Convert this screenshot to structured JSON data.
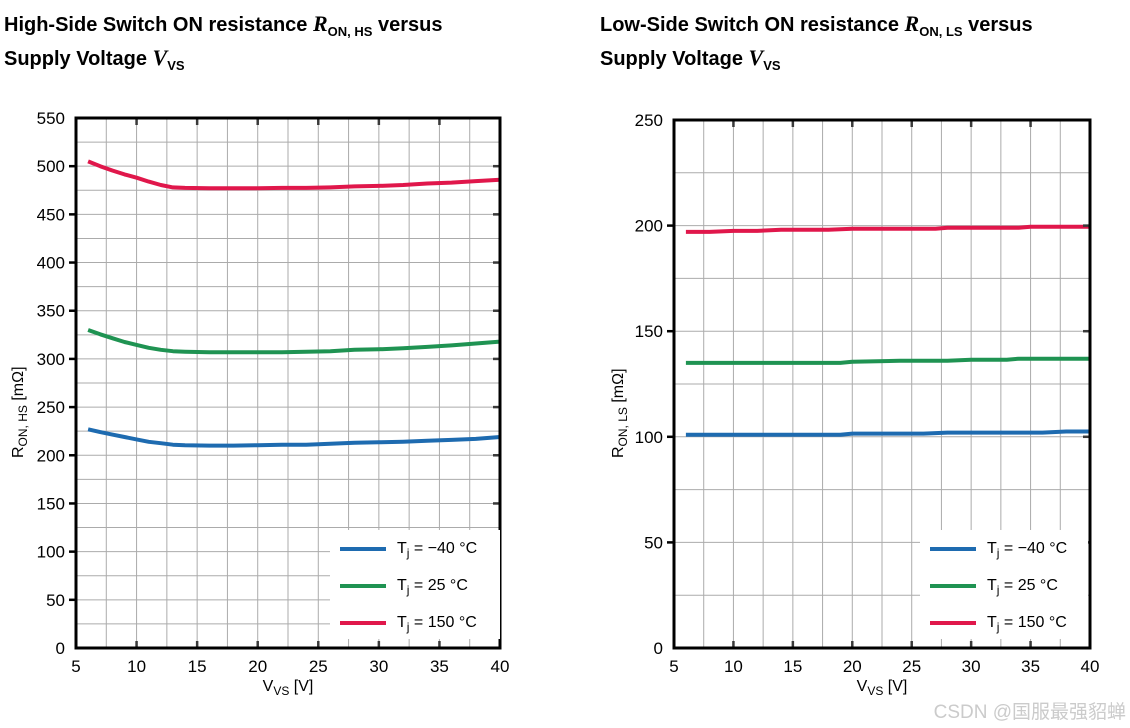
{
  "watermark": "CSDN @国服最强貂蝉",
  "chart_data": [
    {
      "type": "line",
      "title": "High-Side Switch ON resistance R_ON, HS versus Supply Voltage V_VS",
      "title_parts": {
        "prefix": "High-Side Switch ON resistance ",
        "sym1": "R",
        "sym1_sub": "ON, HS",
        "mid": " versus",
        "line2_prefix": "Supply Voltage ",
        "sym2": "V",
        "sym2_sub": "VS"
      },
      "xlabel": "V_VS [V]",
      "xlabel_parts": {
        "sym": "V",
        "sub": "VS",
        "unit": " [V]"
      },
      "ylabel": "R_ON, HS [mΩ]",
      "ylabel_parts": {
        "sym": "R",
        "sub": "ON, HS",
        "unit": " [mΩ]"
      },
      "xlim": [
        5,
        40
      ],
      "ylim": [
        0,
        550
      ],
      "xtick": 5,
      "ytick": 50,
      "xminor": 2.5,
      "yminor": 25,
      "grid": true,
      "grid_color": "#ababab",
      "legend_position": "lower right",
      "series": [
        {
          "name": "Tj = −40 °C",
          "color": "#1e6bb0",
          "label_parts": {
            "main": "T",
            "sub": "j",
            "rest": " = −40 °C"
          },
          "points": [
            [
              6,
              227
            ],
            [
              7,
              224
            ],
            [
              8,
              221.5
            ],
            [
              9,
              219
            ],
            [
              10,
              216.5
            ],
            [
              11,
              214
            ],
            [
              12,
              212.5
            ],
            [
              13,
              211
            ],
            [
              14,
              210.5
            ],
            [
              16,
              210
            ],
            [
              18,
              210
            ],
            [
              20,
              210.5
            ],
            [
              22,
              211
            ],
            [
              24,
              211
            ],
            [
              26,
              212
            ],
            [
              28,
              213
            ],
            [
              30,
              213.5
            ],
            [
              32,
              214
            ],
            [
              34,
              215
            ],
            [
              36,
              216
            ],
            [
              38,
              217
            ],
            [
              40,
              219
            ]
          ]
        },
        {
          "name": "Tj = 25 °C",
          "color": "#1f9352",
          "label_parts": {
            "main": "T",
            "sub": "j",
            "rest": " = 25 °C"
          },
          "points": [
            [
              6,
              330
            ],
            [
              7,
              325.5
            ],
            [
              8,
              321.5
            ],
            [
              9,
              317.5
            ],
            [
              10,
              314.5
            ],
            [
              11,
              311.5
            ],
            [
              12,
              309.5
            ],
            [
              13,
              308
            ],
            [
              14,
              307.5
            ],
            [
              16,
              307
            ],
            [
              18,
              307
            ],
            [
              20,
              307
            ],
            [
              22,
              307
            ],
            [
              24,
              307.5
            ],
            [
              26,
              308
            ],
            [
              28,
              309.5
            ],
            [
              30,
              310
            ],
            [
              32,
              311
            ],
            [
              34,
              312.5
            ],
            [
              36,
              314
            ],
            [
              38,
              316
            ],
            [
              40,
              318
            ]
          ]
        },
        {
          "name": "Tj = 150 °C",
          "color": "#e0174b",
          "label_parts": {
            "main": "T",
            "sub": "j",
            "rest": " = 150 °C"
          },
          "points": [
            [
              6,
              505
            ],
            [
              7,
              500
            ],
            [
              8,
              495.5
            ],
            [
              9,
              491.5
            ],
            [
              10,
              488
            ],
            [
              11,
              484
            ],
            [
              12,
              480.5
            ],
            [
              13,
              478
            ],
            [
              14,
              477.5
            ],
            [
              16,
              477
            ],
            [
              18,
              477
            ],
            [
              20,
              477
            ],
            [
              22,
              477.5
            ],
            [
              24,
              477.5
            ],
            [
              26,
              478
            ],
            [
              28,
              479
            ],
            [
              30,
              479.5
            ],
            [
              32,
              480.5
            ],
            [
              34,
              482
            ],
            [
              36,
              483
            ],
            [
              38,
              484.5
            ],
            [
              40,
              486
            ]
          ]
        }
      ]
    },
    {
      "type": "line",
      "title": "Low-Side Switch ON resistance R_ON, LS versus Supply Voltage V_VS",
      "title_parts": {
        "prefix": "Low-Side Switch ON resistance ",
        "sym1": "R",
        "sym1_sub": "ON, LS",
        "mid": " versus",
        "line2_prefix": "Supply Voltage ",
        "sym2": "V",
        "sym2_sub": "VS"
      },
      "xlabel": "V_VS [V]",
      "xlabel_parts": {
        "sym": "V",
        "sub": "VS",
        "unit": " [V]"
      },
      "ylabel": "R_ON, LS [mΩ]",
      "ylabel_parts": {
        "sym": "R",
        "sub": "ON, LS",
        "unit": " [mΩ]"
      },
      "xlim": [
        5,
        40
      ],
      "ylim": [
        0,
        250
      ],
      "xtick": 5,
      "ytick": 50,
      "xminor": 2.5,
      "yminor": 25,
      "grid": true,
      "grid_color": "#ababab",
      "legend_position": "lower right",
      "series": [
        {
          "name": "Tj = −40 °C",
          "color": "#1e6bb0",
          "label_parts": {
            "main": "T",
            "sub": "j",
            "rest": " = −40 °C"
          },
          "points": [
            [
              6,
              101
            ],
            [
              10,
              101
            ],
            [
              14,
              101
            ],
            [
              19,
              101
            ],
            [
              20,
              101.5
            ],
            [
              26,
              101.5
            ],
            [
              28,
              102
            ],
            [
              34,
              102
            ],
            [
              36,
              102
            ],
            [
              38,
              102.5
            ],
            [
              40,
              102.5
            ]
          ]
        },
        {
          "name": "Tj = 25 °C",
          "color": "#1f9352",
          "label_parts": {
            "main": "T",
            "sub": "j",
            "rest": " = 25 °C"
          },
          "points": [
            [
              6,
              135
            ],
            [
              10,
              135
            ],
            [
              14,
              135
            ],
            [
              19,
              135
            ],
            [
              20,
              135.5
            ],
            [
              24,
              136
            ],
            [
              28,
              136
            ],
            [
              30,
              136.5
            ],
            [
              33,
              136.5
            ],
            [
              34,
              137
            ],
            [
              40,
              137
            ]
          ]
        },
        {
          "name": "Tj = 150 °C",
          "color": "#e0174b",
          "label_parts": {
            "main": "T",
            "sub": "j",
            "rest": " = 150 °C"
          },
          "points": [
            [
              6,
              197
            ],
            [
              8,
              197
            ],
            [
              10,
              197.5
            ],
            [
              12,
              197.5
            ],
            [
              14,
              198
            ],
            [
              16,
              198
            ],
            [
              18,
              198
            ],
            [
              20,
              198.5
            ],
            [
              24,
              198.5
            ],
            [
              27,
              198.5
            ],
            [
              28,
              199
            ],
            [
              32,
              199
            ],
            [
              34,
              199
            ],
            [
              35,
              199.5
            ],
            [
              40,
              199.5
            ]
          ]
        }
      ]
    }
  ]
}
